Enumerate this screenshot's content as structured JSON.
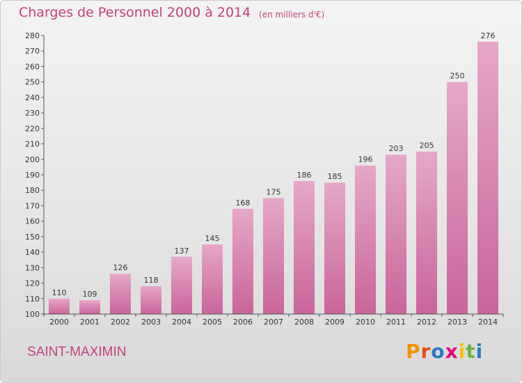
{
  "header": {
    "title": "Charges de Personnel 2000 à 2014",
    "unit": "(en milliers d'€)"
  },
  "footer": {
    "location": "SAINT-MAXIMIN",
    "brand": "Proxiti",
    "brand_colors": [
      "#f39200",
      "#e84e0f",
      "#2b78c5",
      "#e6007e",
      "#f2c500",
      "#6cb33f",
      "#2b78c5"
    ]
  },
  "colors": {
    "bar": "#c9649a",
    "bar_light": "#e6a7c9",
    "accent_text": "#c2417b"
  },
  "chart_data": {
    "type": "bar",
    "categories": [
      "2000",
      "2001",
      "2002",
      "2003",
      "2004",
      "2005",
      "2006",
      "2007",
      "2008",
      "2009",
      "2010",
      "2011",
      "2012",
      "2013",
      "2014"
    ],
    "values": [
      110,
      109,
      126,
      118,
      137,
      145,
      168,
      175,
      186,
      185,
      196,
      203,
      205,
      250,
      276
    ],
    "ylim": [
      100,
      280
    ],
    "yticks": [
      100,
      110,
      120,
      130,
      140,
      150,
      160,
      170,
      180,
      190,
      200,
      210,
      220,
      230,
      240,
      250,
      260,
      270,
      280
    ],
    "grid": false,
    "show_value_labels": true
  }
}
